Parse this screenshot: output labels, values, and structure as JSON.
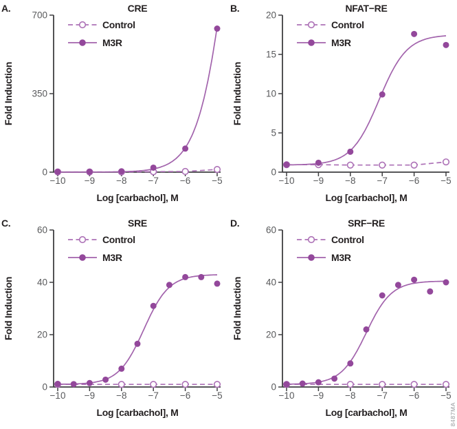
{
  "figure": {
    "code": "8487MA",
    "xlabel": "Log [carbachol], M",
    "ylabel": "Fold Induction",
    "legend_labels": [
      "Control",
      "M3R"
    ],
    "colors": {
      "m3r_marker": "#93489B",
      "m3r_line": "#A263AC",
      "control": "#AC70B6",
      "axis": "#3E3E40",
      "tick_label": "#58595B",
      "text": "#231F20",
      "code": "#939598",
      "background": "#FFFFFF"
    }
  },
  "chart_data": [
    {
      "type": "scatter",
      "panel_letter": "A.",
      "title": "CRE",
      "xlabel": "Log [carbachol], M",
      "ylabel": "Fold Induction",
      "xlim": [
        -10,
        -5
      ],
      "ylim": [
        0,
        700
      ],
      "xticks": [
        -10,
        -9,
        -8,
        -7,
        -6,
        -5
      ],
      "yticks": [
        0,
        350,
        700
      ],
      "grid": false,
      "legend_position": "top-left",
      "series": [
        {
          "name": "Control",
          "marker": "open-circle",
          "line": "dashed",
          "x": [
            -10,
            -9,
            -8,
            -7,
            -6,
            -5
          ],
          "y": [
            1,
            1,
            1,
            2,
            3,
            12
          ]
        },
        {
          "name": "M3R",
          "marker": "filled-circle",
          "line": "solid",
          "x": [
            -10,
            -9,
            -8,
            -7,
            -6,
            -5
          ],
          "y": [
            2,
            2,
            4,
            20,
            105,
            640
          ],
          "fit": {
            "model": "4PL",
            "bottom": 0,
            "top": 2300,
            "logEC50": -4.55,
            "hill": 0.9
          }
        }
      ]
    },
    {
      "type": "scatter",
      "panel_letter": "B.",
      "title": "NFAT-RE",
      "xlabel": "Log [carbachol], M",
      "ylabel": "Fold Induction",
      "xlim": [
        -10,
        -5
      ],
      "ylim": [
        0,
        20
      ],
      "xticks": [
        -10,
        -9,
        -8,
        -7,
        -6,
        -5
      ],
      "yticks": [
        0,
        5,
        10,
        15,
        20
      ],
      "grid": false,
      "legend_position": "top-left",
      "series": [
        {
          "name": "Control",
          "marker": "open-circle",
          "line": "dashed",
          "x": [
            -10,
            -9,
            -8,
            -7,
            -6,
            -5
          ],
          "y": [
            0.95,
            0.95,
            0.9,
            0.9,
            0.9,
            1.3
          ]
        },
        {
          "name": "M3R",
          "marker": "filled-circle",
          "line": "solid",
          "x": [
            -10,
            -9,
            -8,
            -7,
            -6,
            -5
          ],
          "y": [
            0.95,
            1.2,
            2.6,
            9.9,
            17.6,
            16.2
          ],
          "fit": {
            "model": "4PL",
            "bottom": 0.9,
            "top": 17.5,
            "logEC50": -7.1,
            "hill": 1.0
          }
        }
      ]
    },
    {
      "type": "scatter",
      "panel_letter": "C.",
      "title": "SRE",
      "xlabel": "Log [carbachol], M",
      "ylabel": "Fold Induction",
      "xlim": [
        -10,
        -5
      ],
      "ylim": [
        0,
        60
      ],
      "xticks": [
        -10,
        -9,
        -8,
        -7,
        -6,
        -5
      ],
      "yticks": [
        0,
        20,
        40,
        60
      ],
      "grid": false,
      "legend_position": "top-left",
      "series": [
        {
          "name": "Control",
          "marker": "open-circle",
          "line": "dashed",
          "x": [
            -10,
            -8,
            -7,
            -6,
            -5
          ],
          "y": [
            1,
            1,
            1,
            1,
            1
          ]
        },
        {
          "name": "M3R",
          "marker": "filled-circle",
          "line": "solid",
          "x": [
            -10,
            -9.5,
            -9,
            -8.5,
            -8,
            -7.5,
            -7,
            -6.5,
            -6,
            -5.5,
            -5
          ],
          "y": [
            1.2,
            1.1,
            1.5,
            2.8,
            7,
            16.5,
            31,
            39,
            42,
            42,
            39.5
          ],
          "fit": {
            "model": "4PL",
            "bottom": 1,
            "top": 43,
            "logEC50": -7.3,
            "hill": 1.1
          }
        }
      ]
    },
    {
      "type": "scatter",
      "panel_letter": "D.",
      "title": "SRF-RE",
      "xlabel": "Log [carbachol], M",
      "ylabel": "Fold Induction",
      "xlim": [
        -10,
        -5
      ],
      "ylim": [
        0,
        60
      ],
      "xticks": [
        -10,
        -9,
        -8,
        -7,
        -6,
        -5
      ],
      "yticks": [
        0,
        20,
        40,
        60
      ],
      "grid": false,
      "legend_position": "top-left",
      "series": [
        {
          "name": "Control",
          "marker": "open-circle",
          "line": "dashed",
          "x": [
            -10,
            -8,
            -7,
            -6,
            -5
          ],
          "y": [
            1,
            1,
            1,
            1,
            1
          ]
        },
        {
          "name": "M3R",
          "marker": "filled-circle",
          "line": "solid",
          "x": [
            -10,
            -9.5,
            -9,
            -8.5,
            -8,
            -7.5,
            -7,
            -6.5,
            -6,
            -5.5,
            -5
          ],
          "y": [
            1,
            1.3,
            1.8,
            3.2,
            9,
            22,
            35,
            39,
            41,
            36.5,
            40
          ],
          "fit": {
            "model": "4PL",
            "bottom": 1,
            "top": 40.5,
            "logEC50": -7.5,
            "hill": 1.1
          }
        }
      ]
    }
  ]
}
